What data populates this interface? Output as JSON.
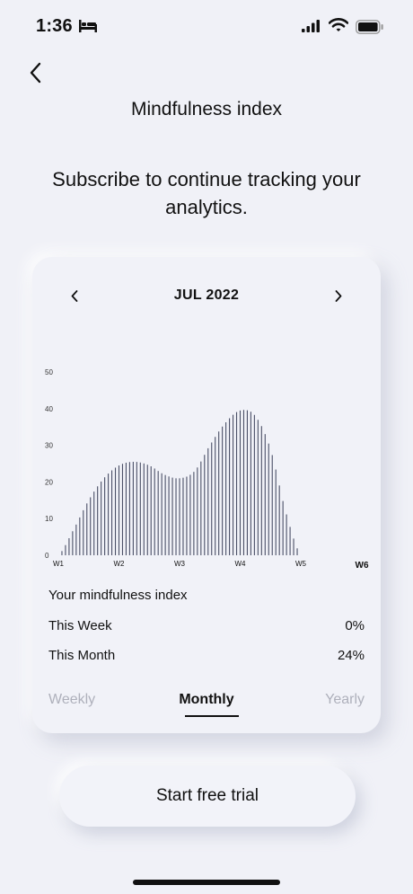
{
  "status_bar": {
    "time": "1:36",
    "icons": [
      "bed-icon",
      "signal-icon",
      "wifi-icon",
      "battery-icon"
    ]
  },
  "header": {
    "back_icon": "chevron-left-icon",
    "title": "Mindfulness index"
  },
  "subtitle": "Subscribe to continue tracking your analytics.",
  "card": {
    "month": "JUL 2022",
    "prev_icon": "chevron-left-icon",
    "next_icon": "chevron-right-icon",
    "index_title": "Your mindfulness index",
    "this_week_label": "This Week",
    "this_week_value": "0%",
    "this_month_label": "This Month",
    "this_month_value": "24%",
    "tabs": {
      "weekly": "Weekly",
      "monthly": "Monthly",
      "yearly": "Yearly",
      "active": "monthly"
    }
  },
  "chart_data": {
    "type": "area",
    "y_ticks": [
      "0",
      "10",
      "20",
      "30",
      "40",
      "50"
    ],
    "ylim": [
      0,
      50
    ],
    "x_ticks": [
      "W1",
      "W2",
      "W3",
      "W4",
      "W5",
      "W6"
    ],
    "highlighted_tick": "W6",
    "x": [
      1.0,
      1.25,
      1.5,
      1.75,
      2.0,
      2.25,
      2.5,
      2.75,
      3.0,
      3.25,
      3.5,
      3.75,
      4.0,
      4.25,
      4.5,
      4.75,
      5.0
    ],
    "values": [
      0,
      7,
      15,
      21,
      24.5,
      25.5,
      24.5,
      22,
      21,
      23,
      30,
      36,
      39.5,
      38,
      29,
      12,
      0
    ],
    "line_color": "#4a4f66"
  },
  "cta": {
    "label": "Start free trial"
  }
}
